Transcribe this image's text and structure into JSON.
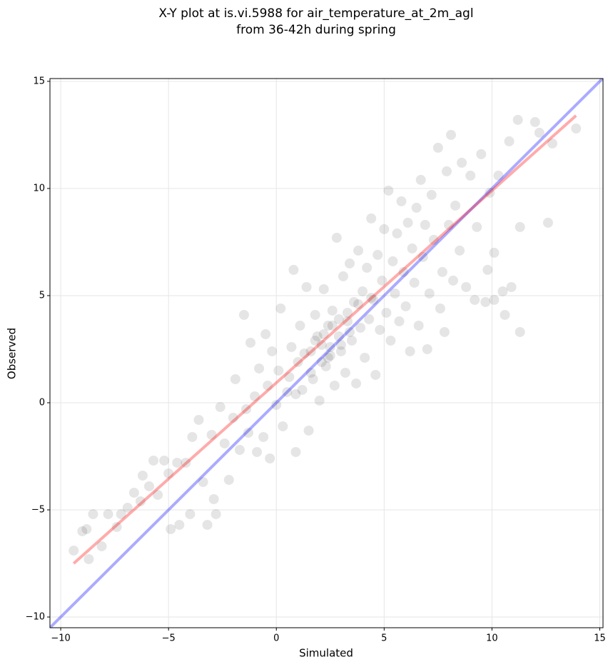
{
  "chart_data": {
    "type": "scatter",
    "title": [
      "X-Y plot at is.vi.5988 for air_temperature_at_2m_agl",
      "from 36-42h during spring"
    ],
    "x_label": "Simulated",
    "y_label": "Observed",
    "xlim": [
      -10.5,
      15.15
    ],
    "ylim": [
      -10.5,
      15.13
    ],
    "xticks": [
      {
        "value": -10,
        "label": "−10"
      },
      {
        "value": -5,
        "label": "−5"
      },
      0,
      5,
      10,
      15
    ],
    "yticks": [
      {
        "value": -10,
        "label": "−10"
      },
      {
        "value": -5,
        "label": "−5"
      },
      0,
      5,
      10,
      15
    ],
    "grid": true,
    "series": [
      {
        "color": "#000000",
        "x": [
          -9.4,
          -9,
          -8.8,
          -8.7,
          -8.5,
          -8.1,
          -7.8,
          -7.4,
          -7.2,
          -6.9,
          -6.6,
          -6.3,
          -6.2,
          -5.9,
          -5.7,
          -5.5,
          -5.2,
          -5,
          -4.9,
          -4.6,
          -4.5,
          -4.2,
          -4,
          -3.9,
          -3.6,
          -3.4,
          -3.2,
          -3,
          -2.9,
          -2.8,
          -2.6,
          -2.4,
          -2.2,
          -2,
          -1.9,
          -1.7,
          -1.5,
          -1.4,
          -1.3,
          -1.2,
          -1,
          -0.9,
          -0.8,
          -0.6,
          -0.5,
          -0.4,
          -0.3,
          -0.2,
          0,
          0.1,
          0.2,
          0.3,
          0.5,
          0.7,
          0.8,
          0.9,
          1,
          1.1,
          1.2,
          1.4,
          1.5,
          1.6,
          1.7,
          1.8,
          1.9,
          2,
          2.1,
          2.2,
          2.3,
          2.4,
          2.5,
          2.6,
          2.7,
          2.8,
          2.9,
          3,
          3.1,
          3.2,
          3.3,
          3.4,
          3.5,
          3.6,
          3.7,
          3.8,
          3.9,
          4,
          4.1,
          4.2,
          4.3,
          4.4,
          4.5,
          4.6,
          4.7,
          4.8,
          4.9,
          5,
          5.1,
          5.2,
          5.3,
          5.4,
          5.5,
          5.6,
          5.7,
          5.8,
          5.9,
          6,
          6.1,
          6.2,
          6.3,
          6.4,
          6.5,
          6.6,
          6.7,
          6.8,
          6.9,
          7,
          7.1,
          7.2,
          7.3,
          7.5,
          7.6,
          7.7,
          7.8,
          7.9,
          8,
          8.1,
          8.2,
          8.3,
          8.5,
          8.6,
          8.8,
          9,
          9.2,
          9.3,
          9.5,
          9.7,
          9.9,
          10.1,
          10.3,
          10.5,
          10.6,
          10.8,
          10.9,
          11.2,
          11.3,
          11.3,
          12,
          12.2,
          12.6,
          12.8,
          13.9,
          10.1,
          9.8,
          1.3,
          1.8,
          2.2,
          2.6,
          3,
          3.4,
          2.1,
          2.5,
          2.9,
          3.3,
          1.6,
          2.4,
          3.8,
          4.4,
          0.6,
          0.9
        ],
        "values": [
          -6.9,
          -6,
          -5.9,
          -7.3,
          -5.2,
          -6.7,
          -5.2,
          -5.8,
          -5.2,
          -4.9,
          -4.2,
          -4.6,
          -3.4,
          -3.9,
          -2.7,
          -4.3,
          -2.7,
          -3.3,
          -5.9,
          -2.8,
          -5.7,
          -2.8,
          -5.2,
          -1.6,
          -0.8,
          -3.7,
          -5.7,
          -1.5,
          -4.5,
          -5.2,
          -0.2,
          -1.9,
          -3.6,
          -0.7,
          1.1,
          -2.2,
          4.1,
          -0.3,
          -1.4,
          2.8,
          0.3,
          -2.3,
          1.6,
          -1.6,
          3.2,
          0.8,
          -2.6,
          2.4,
          -0.1,
          1.5,
          4.4,
          -1.1,
          0.5,
          2.6,
          6.2,
          -2.3,
          1.9,
          3.6,
          0.6,
          5.4,
          -1.3,
          2.4,
          1.1,
          4.1,
          3.1,
          0.1,
          2.7,
          5.3,
          1.7,
          3.6,
          2.2,
          4.3,
          0.8,
          7.7,
          3.1,
          2.4,
          5.9,
          1.4,
          3.8,
          6.5,
          2.9,
          4.7,
          0.9,
          7.1,
          3.5,
          5.2,
          2.1,
          6.3,
          3.9,
          8.6,
          4.8,
          1.3,
          6.9,
          3.4,
          5.7,
          8.1,
          4.2,
          9.9,
          2.9,
          6.6,
          5.1,
          7.9,
          3.8,
          9.4,
          6.1,
          4.5,
          8.4,
          2.4,
          7.2,
          5.6,
          9.1,
          3.6,
          10.4,
          6.8,
          8.3,
          2.5,
          5.1,
          9.7,
          7.6,
          11.9,
          4.4,
          6.1,
          3.3,
          10.8,
          8.3,
          12.5,
          5.7,
          9.2,
          7.1,
          11.2,
          5.4,
          10.6,
          4.8,
          8.2,
          11.6,
          4.7,
          9.8,
          7,
          10.6,
          5.2,
          4.1,
          12.2,
          5.4,
          13.2,
          3.3,
          8.2,
          13.1,
          12.6,
          8.4,
          12.1,
          12.8,
          4.8,
          6.2,
          2.3,
          2.9,
          3.2,
          3.6,
          2.7,
          3.3,
          1.9,
          2.6,
          3.9,
          4.2,
          1.4,
          2.1,
          4.6,
          4.9,
          1.2,
          0.4
        ]
      }
    ],
    "lines": [
      {
        "color": "#0000ff",
        "x": [
          -10.5,
          15.15
        ],
        "values": [
          -10.5,
          15.15
        ]
      },
      {
        "color": "#ff0000",
        "x": [
          -9.4,
          13.9
        ],
        "values": [
          -7.5,
          13.4
        ]
      }
    ]
  }
}
